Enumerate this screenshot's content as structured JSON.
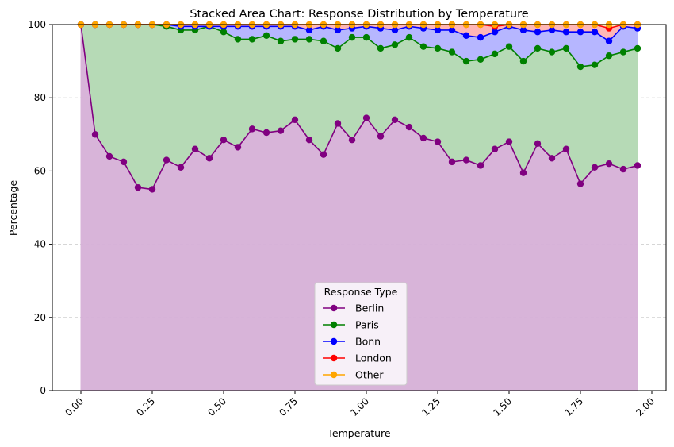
{
  "chart_data": {
    "type": "area",
    "stacked": true,
    "title": "Stacked Area Chart: Response Distribution by Temperature",
    "xlabel": "Temperature",
    "ylabel": "Percentage",
    "xlim": [
      -0.1,
      2.05
    ],
    "ylim": [
      0,
      100
    ],
    "xticks": [
      "0.00",
      "0.25",
      "0.50",
      "0.75",
      "1.00",
      "1.25",
      "1.50",
      "1.75",
      "2.00"
    ],
    "xtick_values": [
      0,
      0.25,
      0.5,
      0.75,
      1.0,
      1.25,
      1.5,
      1.75,
      2.0
    ],
    "yticks": [
      "0",
      "20",
      "40",
      "60",
      "80",
      "100"
    ],
    "ytick_values": [
      0,
      20,
      40,
      60,
      80,
      100
    ],
    "grid": "y-dashed",
    "legend_title": "Response Type",
    "legend_position": "lower-center",
    "x": [
      0.0,
      0.05,
      0.1,
      0.15,
      0.2,
      0.25,
      0.3,
      0.35,
      0.4,
      0.45,
      0.5,
      0.55,
      0.6,
      0.65,
      0.7,
      0.75,
      0.8,
      0.85,
      0.9,
      0.95,
      1.0,
      1.05,
      1.1,
      1.15,
      1.2,
      1.25,
      1.3,
      1.35,
      1.4,
      1.45,
      1.5,
      1.55,
      1.6,
      1.65,
      1.7,
      1.75,
      1.8,
      1.85,
      1.9,
      1.95
    ],
    "series": [
      {
        "name": "Berlin",
        "color": "#800080",
        "fill": "#d6b0d8",
        "cumulative": [
          100,
          70,
          64,
          62.5,
          55.5,
          55,
          63,
          61,
          66,
          63.5,
          68.5,
          66.5,
          71.5,
          70.5,
          71,
          74,
          68.5,
          64.5,
          73,
          68.5,
          74.5,
          69.5,
          74,
          72,
          69,
          68,
          62.5,
          63,
          61.5,
          66,
          68,
          59.5,
          67.5,
          63.5,
          66,
          56.5,
          61,
          62,
          60.5,
          61.5
        ]
      },
      {
        "name": "Paris",
        "color": "#008000",
        "fill": "#b3d9b3",
        "cumulative": [
          100,
          100,
          100,
          100,
          100,
          100,
          99.5,
          98.5,
          98.5,
          99.5,
          98,
          96,
          96,
          97,
          95.5,
          96,
          96,
          95.5,
          93.5,
          96.5,
          96.5,
          93.5,
          94.5,
          96.5,
          94,
          93.5,
          92.5,
          90,
          90.5,
          92,
          94,
          90,
          93.5,
          92.5,
          93.5,
          88.5,
          89,
          91.5,
          92.5,
          93.5
        ]
      },
      {
        "name": "Bonn",
        "color": "#0000ff",
        "fill": "#b3b3ff",
        "cumulative": [
          100,
          100,
          100,
          100,
          100,
          100,
          100,
          99.5,
          99.5,
          99.5,
          99.5,
          99.5,
          99.5,
          99.5,
          99.5,
          99.5,
          98.5,
          99.5,
          98.5,
          99,
          99.5,
          99,
          98.5,
          99.5,
          99,
          98.5,
          98.5,
          97,
          96.5,
          98,
          99.5,
          98.5,
          98,
          98.5,
          98,
          98,
          98,
          95.5,
          99.5,
          99
        ]
      },
      {
        "name": "London",
        "color": "#ff0000",
        "fill": "#ffb3b3",
        "cumulative": [
          100,
          100,
          100,
          100,
          100,
          100,
          100,
          100,
          100,
          100,
          100,
          100,
          100,
          100,
          100,
          100,
          100,
          100,
          100,
          100,
          100,
          100,
          100,
          100,
          100,
          100,
          100,
          100,
          100,
          99.5,
          100,
          100,
          100,
          100,
          100,
          100,
          100,
          99,
          100,
          100
        ]
      },
      {
        "name": "Other",
        "color": "#ffa500",
        "fill": "#ffe4b3",
        "cumulative": [
          100,
          100,
          100,
          100,
          100,
          100,
          100,
          100,
          100,
          100,
          100,
          100,
          100,
          100,
          100,
          100,
          100,
          100,
          100,
          100,
          100,
          100,
          100,
          100,
          100,
          100,
          100,
          100,
          100,
          100,
          100,
          100,
          100,
          100,
          100,
          100,
          100,
          100,
          100,
          100
        ]
      }
    ]
  }
}
